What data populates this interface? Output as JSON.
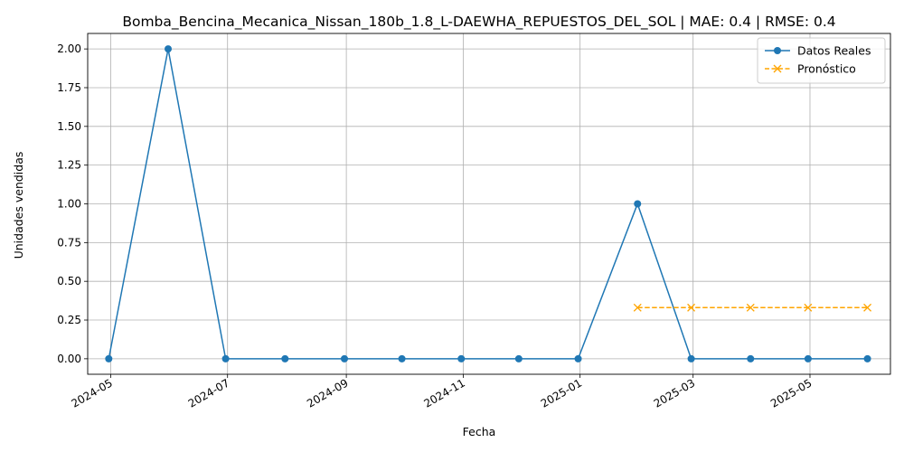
{
  "chart_data": {
    "type": "line",
    "title": "Bomba_Bencina_Mecanica_Nissan_180b_1.8_L-DAEWHA_REPUESTOS_DEL_SOL | MAE: 0.4 | RMSE: 0.4",
    "xlabel": "Fecha",
    "ylabel": "Unidades vendidas",
    "ylim": [
      -0.1,
      2.1
    ],
    "xlim": [
      "2024-04-19",
      "2025-06-12"
    ],
    "grid": true,
    "legend_position": "top-right",
    "x_ticks": [
      "2024-05",
      "2024-07",
      "2024-09",
      "2024-11",
      "2025-01",
      "2025-03",
      "2025-05"
    ],
    "y_ticks": [
      "0.00",
      "0.25",
      "0.50",
      "0.75",
      "1.00",
      "1.25",
      "1.50",
      "1.75",
      "2.00"
    ],
    "series": [
      {
        "name": "Datos Reales",
        "color": "#1f77b4",
        "line_style": "solid",
        "marker": "circle",
        "x": [
          "2024-04-30",
          "2024-05-31",
          "2024-06-30",
          "2024-07-31",
          "2024-08-31",
          "2024-09-30",
          "2024-10-31",
          "2024-11-30",
          "2024-12-31",
          "2025-01-31",
          "2025-02-28",
          "2025-03-31",
          "2025-04-30",
          "2025-05-31"
        ],
        "values": [
          0,
          2,
          0,
          0,
          0,
          0,
          0,
          0,
          0,
          1,
          0,
          0,
          0,
          0
        ]
      },
      {
        "name": "Pronóstico",
        "color": "#ffa500",
        "line_style": "dashed",
        "marker": "x",
        "x": [
          "2025-01-31",
          "2025-02-28",
          "2025-03-31",
          "2025-04-30",
          "2025-05-31"
        ],
        "values": [
          0.33,
          0.33,
          0.33,
          0.33,
          0.33
        ]
      }
    ]
  }
}
